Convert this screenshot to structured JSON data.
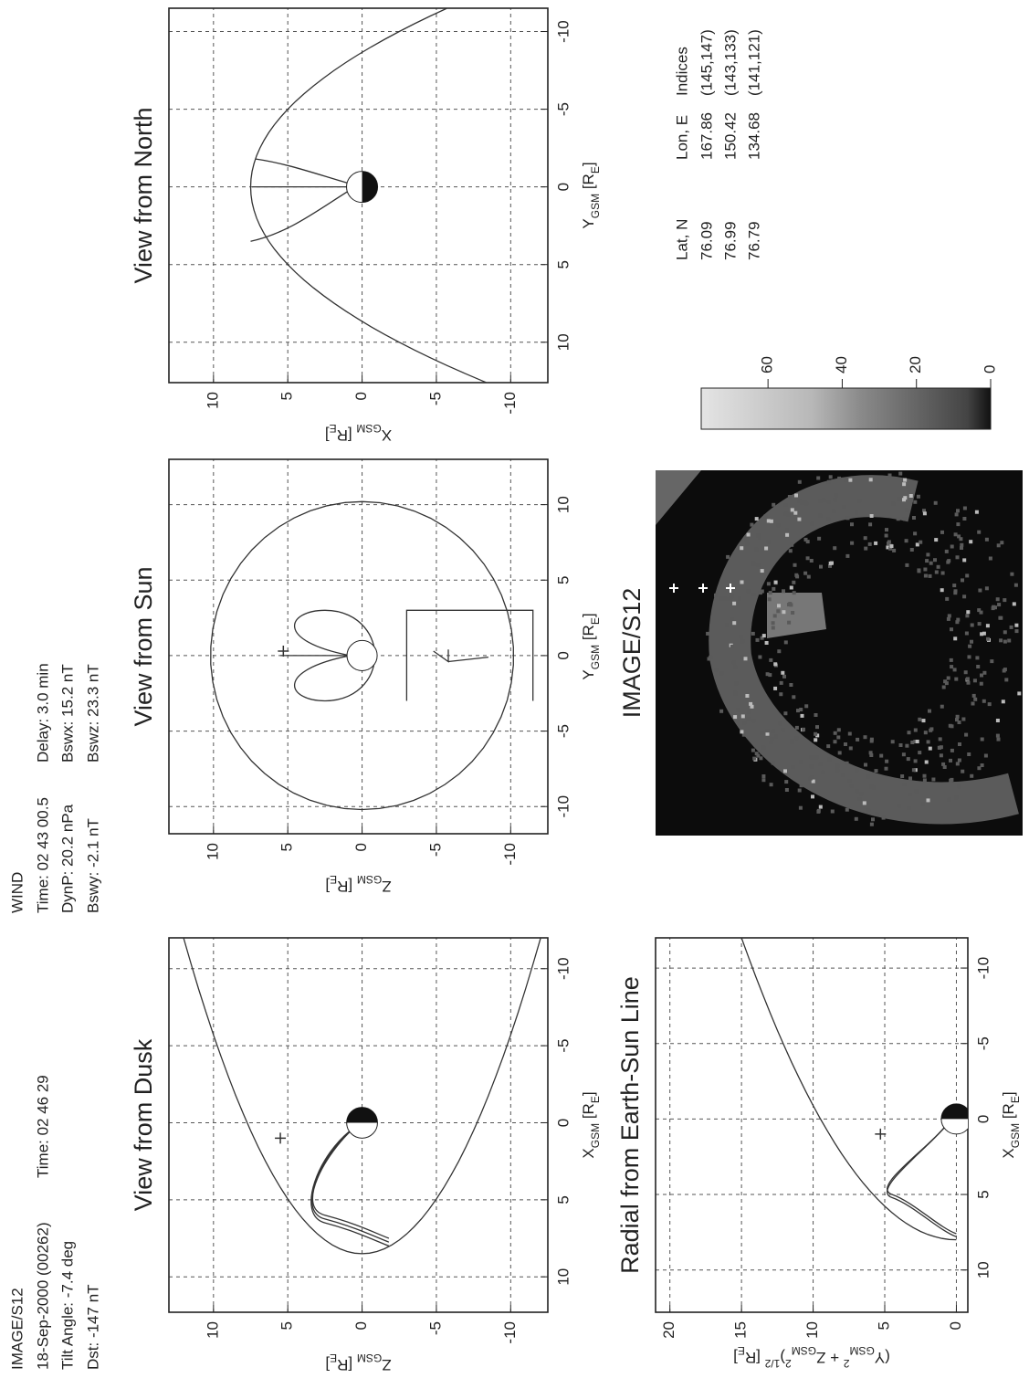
{
  "header": {
    "instrument": "IMAGE/S12",
    "date": "18-Sep-2000 (00262)",
    "time": "Time: 02 46 29",
    "tilt": "Tilt Angle: -7.4 deg",
    "dst": "Dst: -147 nT"
  },
  "solar_wind": {
    "name": "WIND",
    "time": "Time: 02 43 00.5",
    "delay": "Delay: 3.0 min",
    "dynp": "DynP: 20.2 nPa",
    "bswx": "Bswx: 15.2 nT",
    "bswy": "Bswy: -2.1 nT",
    "bswz": "Bswz: 23.3 nT"
  },
  "panels": [
    {
      "title": "View from Dusk",
      "xlabel": [
        "X",
        {
          "sub": "GSM"
        },
        " [R",
        {
          "sub": "E"
        },
        "]"
      ],
      "ylabel": [
        "Z",
        {
          "sub": "GSM"
        },
        " [R",
        {
          "sub": "E"
        },
        "]"
      ],
      "xlim": [
        12.3,
        -12
      ],
      "ylim": [
        -12.5,
        13
      ],
      "xticks": [
        10,
        5,
        0,
        -5,
        -10
      ],
      "yticks": [
        10,
        5,
        0,
        -5,
        -10
      ],
      "grid": true
    },
    {
      "title": "View from Sun",
      "xlabel": [
        "Y",
        {
          "sub": "GSM"
        },
        " [R",
        {
          "sub": "E"
        },
        "]"
      ],
      "ylabel": [
        "Z",
        {
          "sub": "GSM"
        },
        " [R",
        {
          "sub": "E"
        },
        "]"
      ],
      "xlim": [
        -11.8,
        13
      ],
      "ylim": [
        -12.5,
        13
      ],
      "xticks": [
        -10,
        -5,
        0,
        5,
        10
      ],
      "yticks": [
        10,
        5,
        0,
        -5,
        -10
      ],
      "grid": true
    },
    {
      "title": "View from North",
      "xlabel": [
        "Y",
        {
          "sub": "GSM"
        },
        " [R",
        {
          "sub": "E"
        },
        "]"
      ],
      "ylabel": [
        "X",
        {
          "sub": "GSM"
        },
        " [R",
        {
          "sub": "E"
        },
        "]"
      ],
      "xlim": [
        12.6,
        -11.5
      ],
      "ylim": [
        -12.5,
        13
      ],
      "xticks": [
        10,
        5,
        0,
        -5,
        -10
      ],
      "yticks": [
        10,
        5,
        0,
        -5,
        -10
      ],
      "grid": true
    },
    {
      "title": "Radial from Earth-Sun Line",
      "xlabel": [
        "X",
        {
          "sub": "GSM"
        },
        " [R",
        {
          "sub": "E"
        },
        "]"
      ],
      "ylabel": [
        "(Y",
        {
          "sub": "GSM"
        },
        {
          "sup": "2"
        },
        " + Z",
        {
          "sub": "GSM"
        },
        {
          "sup": "2"
        },
        ")",
        {
          "sup": "1/2"
        },
        " [R",
        {
          "sub": "E"
        },
        "]"
      ],
      "xlim": [
        12.8,
        -12
      ],
      "ylim": [
        -0.8,
        21
      ],
      "xticks": [
        10,
        5,
        0,
        -5,
        -10
      ],
      "yticks": [
        20,
        15,
        10,
        5,
        0
      ],
      "grid": true
    }
  ],
  "image_panel": {
    "title": "IMAGE/S12"
  },
  "colorbar": {
    "ylim": [
      0,
      78
    ],
    "yticks": [
      0,
      20,
      40,
      60
    ]
  },
  "table": {
    "header": [
      "Lat, N",
      "Lon, E",
      "Indices"
    ],
    "rows": [
      [
        76.09,
        167.86,
        "(145,147)"
      ],
      [
        76.99,
        150.42,
        "(143,133)"
      ],
      [
        76.79,
        134.68,
        "(141,121)"
      ]
    ]
  }
}
